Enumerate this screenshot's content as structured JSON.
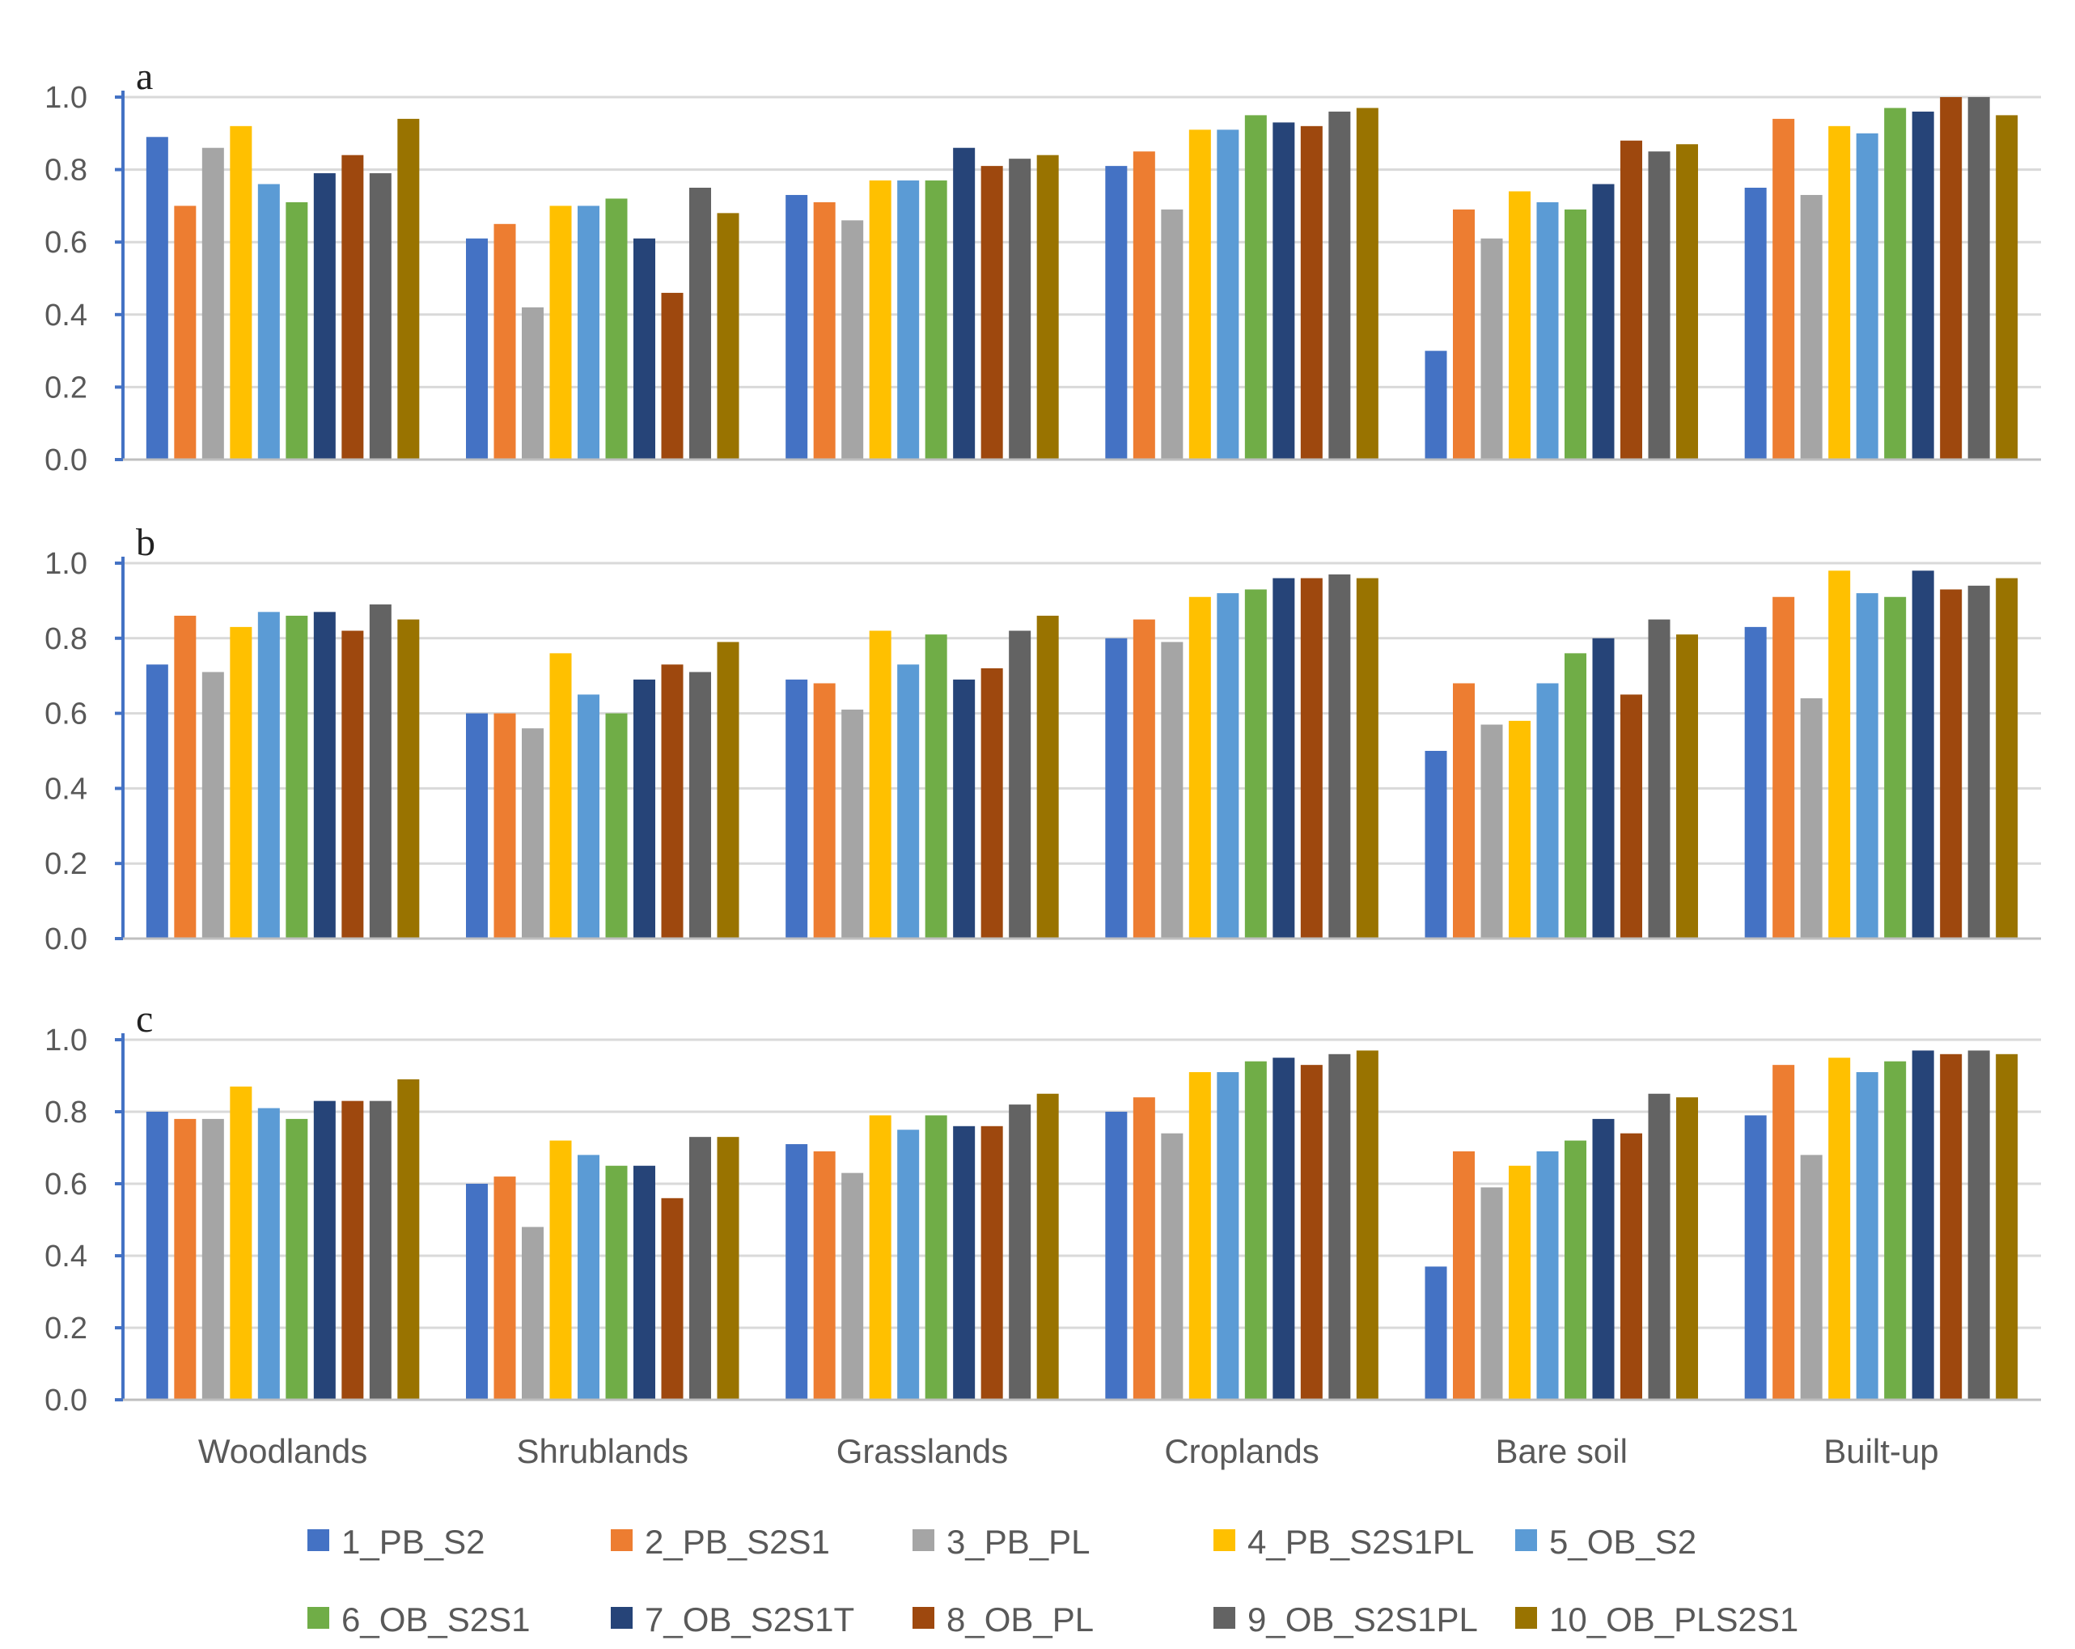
{
  "chart_data": {
    "type": "bar",
    "categories": [
      "Woodlands",
      "Shrublands",
      "Grasslands",
      "Croplands",
      "Bare soil",
      "Built-up"
    ],
    "series": [
      {
        "name": "1_PB_S2",
        "color": "#4472C4"
      },
      {
        "name": "2_PB_S2S1",
        "color": "#ED7D31"
      },
      {
        "name": "3_PB_PL",
        "color": "#A5A5A5"
      },
      {
        "name": "4_PB_S2S1PL",
        "color": "#FFC000"
      },
      {
        "name": "5_OB_S2",
        "color": "#5B9BD5"
      },
      {
        "name": "6_OB_S2S1",
        "color": "#70AD47"
      },
      {
        "name": "7_OB_S2S1T",
        "color": "#264478"
      },
      {
        "name": "8_OB_PL",
        "color": "#9E480E"
      },
      {
        "name": "9_OB_S2S1PL",
        "color": "#636363"
      },
      {
        "name": "10_OB_PLS2S1",
        "color": "#997300"
      }
    ],
    "ylim": [
      0,
      1.0
    ],
    "yticks": [
      "0.0",
      "0.2",
      "0.4",
      "0.6",
      "0.8",
      "1.0"
    ],
    "legend_position": "bottom",
    "panels": [
      {
        "label": "a",
        "values": [
          [
            0.89,
            0.61,
            0.73,
            0.81,
            0.3,
            0.75
          ],
          [
            0.7,
            0.65,
            0.71,
            0.85,
            0.69,
            0.94
          ],
          [
            0.86,
            0.42,
            0.66,
            0.69,
            0.61,
            0.73
          ],
          [
            0.92,
            0.7,
            0.77,
            0.91,
            0.74,
            0.92
          ],
          [
            0.76,
            0.7,
            0.77,
            0.91,
            0.71,
            0.9
          ],
          [
            0.71,
            0.72,
            0.77,
            0.95,
            0.69,
            0.97
          ],
          [
            0.79,
            0.61,
            0.86,
            0.93,
            0.76,
            0.96
          ],
          [
            0.84,
            0.46,
            0.81,
            0.92,
            0.88,
            1.0
          ],
          [
            0.79,
            0.75,
            0.83,
            0.96,
            0.85,
            1.0
          ],
          [
            0.94,
            0.68,
            0.84,
            0.97,
            0.87,
            0.95
          ]
        ]
      },
      {
        "label": "b",
        "values": [
          [
            0.73,
            0.6,
            0.69,
            0.8,
            0.5,
            0.83
          ],
          [
            0.86,
            0.6,
            0.68,
            0.85,
            0.68,
            0.91
          ],
          [
            0.71,
            0.56,
            0.61,
            0.79,
            0.57,
            0.64
          ],
          [
            0.83,
            0.76,
            0.82,
            0.91,
            0.58,
            0.98
          ],
          [
            0.87,
            0.65,
            0.73,
            0.92,
            0.68,
            0.92
          ],
          [
            0.86,
            0.6,
            0.81,
            0.93,
            0.76,
            0.91
          ],
          [
            0.87,
            0.69,
            0.69,
            0.96,
            0.8,
            0.98
          ],
          [
            0.82,
            0.73,
            0.72,
            0.96,
            0.65,
            0.93
          ],
          [
            0.89,
            0.71,
            0.82,
            0.97,
            0.85,
            0.94
          ],
          [
            0.85,
            0.79,
            0.86,
            0.96,
            0.81,
            0.96
          ]
        ]
      },
      {
        "label": "c",
        "values": [
          [
            0.8,
            0.6,
            0.71,
            0.8,
            0.37,
            0.79
          ],
          [
            0.78,
            0.62,
            0.69,
            0.84,
            0.69,
            0.93
          ],
          [
            0.78,
            0.48,
            0.63,
            0.74,
            0.59,
            0.68
          ],
          [
            0.87,
            0.72,
            0.79,
            0.91,
            0.65,
            0.95
          ],
          [
            0.81,
            0.68,
            0.75,
            0.91,
            0.69,
            0.91
          ],
          [
            0.78,
            0.65,
            0.79,
            0.94,
            0.72,
            0.94
          ],
          [
            0.83,
            0.65,
            0.76,
            0.95,
            0.78,
            0.97
          ],
          [
            0.83,
            0.56,
            0.76,
            0.93,
            0.74,
            0.96
          ],
          [
            0.83,
            0.73,
            0.82,
            0.96,
            0.85,
            0.97
          ],
          [
            0.89,
            0.73,
            0.85,
            0.97,
            0.84,
            0.96
          ]
        ]
      }
    ]
  }
}
